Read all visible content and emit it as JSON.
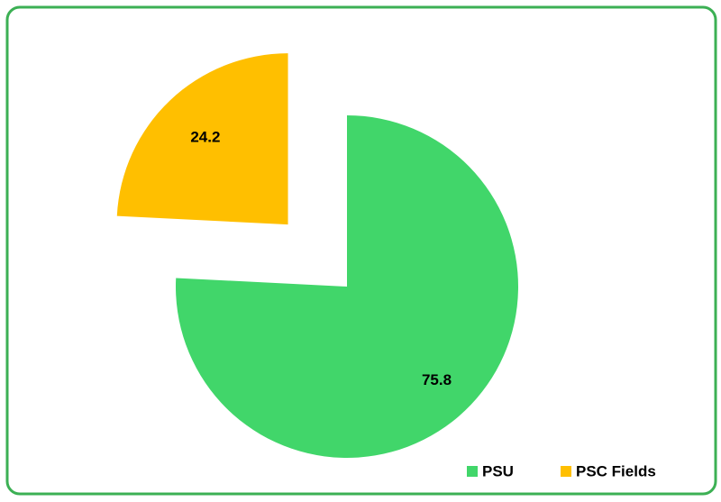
{
  "chart_data": {
    "type": "pie",
    "categories": [
      "PSU",
      "PSC Fields"
    ],
    "values": [
      75.8,
      24.2
    ],
    "colors": [
      "#41d66a",
      "#ffbf00"
    ],
    "explode": [
      false,
      true
    ],
    "legend": "lower right"
  }
}
